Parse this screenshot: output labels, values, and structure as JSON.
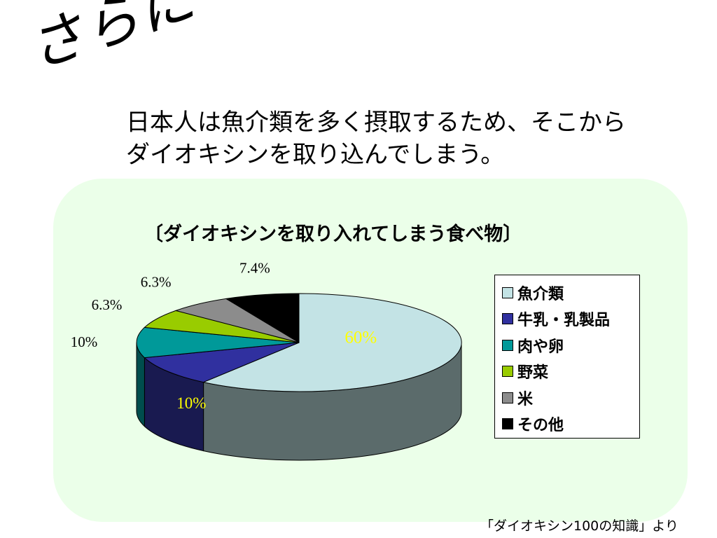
{
  "heading": "さらに",
  "intro": {
    "line1": "日本人は魚介類を多く摂取するため、そこから",
    "line2": "ダイオキシンを取り込んでしまう。"
  },
  "source": "「ダイオキシン100の知識」より",
  "chart_data": {
    "type": "pie",
    "title": "〔ダイオキシンを取り入れてしまう食べ物〕",
    "legend_position": "right",
    "slices": [
      {
        "label": "魚介類",
        "value": 60,
        "value_label": "60%",
        "color": "#c3e3e5",
        "side_color": "#5b6b6b"
      },
      {
        "label": "牛乳・乳製品",
        "value": 10,
        "value_label": "10%",
        "color": "#30309f",
        "side_color": "#191a50"
      },
      {
        "label": "肉や卵",
        "value": 10,
        "value_label": "10%",
        "color": "#009999",
        "side_color": "#004d4d"
      },
      {
        "label": "野菜",
        "value": 6.3,
        "value_label": "6.3%",
        "color": "#99cc00",
        "side_color": "#4d6600"
      },
      {
        "label": "米",
        "value": 6.3,
        "value_label": "6.3%",
        "color": "#8c8c8c",
        "side_color": "#464646"
      },
      {
        "label": "その他",
        "value": 7.4,
        "value_label": "7.4%",
        "color": "#000000",
        "side_color": "#000000"
      }
    ]
  }
}
